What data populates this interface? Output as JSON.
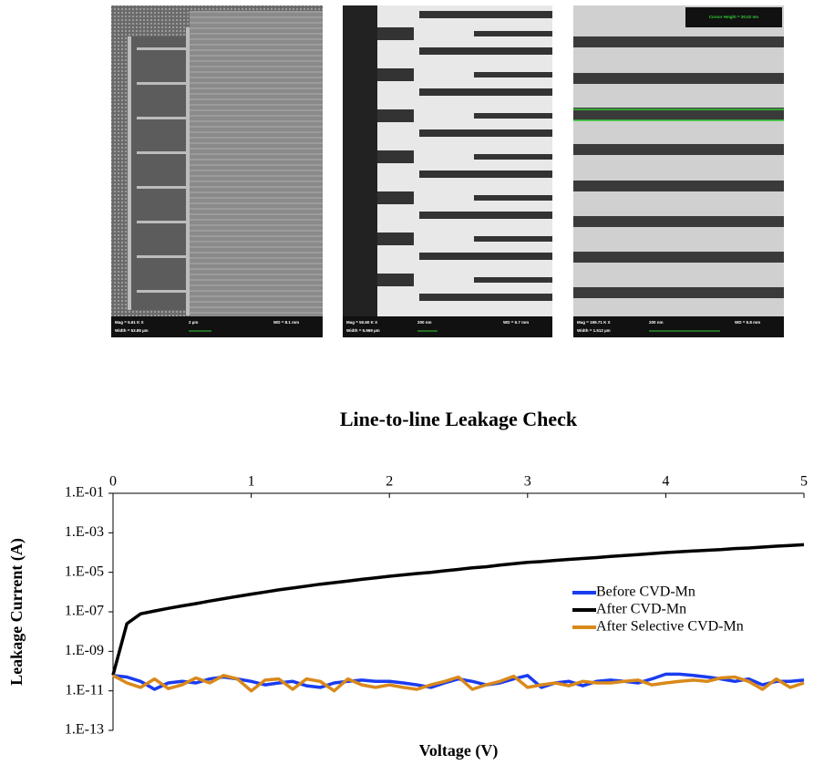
{
  "micrographs": [
    {
      "labels": [
        "Mag = 5.61 K X",
        "Width = 53.85 µm",
        "2 µm",
        "WD = 8.1 mm"
      ]
    },
    {
      "labels": [
        "Mag = 50.60 K X",
        "Width = 5.969 µm",
        "200 nm",
        "WD = 5.7 mm"
      ]
    },
    {
      "labels": [
        "Mag = 199.71 K X",
        "Width = 1.512 µm",
        "200 nm",
        "WD = 5.8 mm"
      ],
      "cursor": "Cursor Height = 30.02 nm"
    }
  ],
  "chart_data": {
    "type": "line",
    "title": "Line-to-line Leakage Check",
    "x_label": "Voltage (V)",
    "y_label": "Leakage Current (A)",
    "x": [
      0,
      0.1,
      0.2,
      0.3,
      0.4,
      0.5,
      0.6,
      0.7,
      0.8,
      0.9,
      1,
      1.1,
      1.2,
      1.3,
      1.4,
      1.5,
      1.6,
      1.7,
      1.8,
      1.9,
      2,
      2.1,
      2.2,
      2.3,
      2.4,
      2.5,
      2.6,
      2.7,
      2.8,
      2.9,
      3,
      3.1,
      3.2,
      3.3,
      3.4,
      3.5,
      3.6,
      3.7,
      3.8,
      3.9,
      4,
      4.1,
      4.2,
      4.3,
      4.4,
      4.5,
      4.6,
      4.7,
      4.8,
      4.9,
      5
    ],
    "series": [
      {
        "name": "Before CVD-Mn",
        "color": "#1a3cf0",
        "values": [
          6e-11,
          5e-11,
          3e-11,
          1.2e-11,
          2.5e-11,
          3e-11,
          2.5e-11,
          4e-11,
          5e-11,
          4e-11,
          3e-11,
          2e-11,
          2.5e-11,
          3e-11,
          1.8e-11,
          1.5e-11,
          2.5e-11,
          3e-11,
          3.5e-11,
          3e-11,
          3e-11,
          2.5e-11,
          2e-11,
          1.5e-11,
          2.5e-11,
          4e-11,
          3e-11,
          2e-11,
          2.5e-11,
          4e-11,
          6e-11,
          1.5e-11,
          2.5e-11,
          3e-11,
          1.8e-11,
          3e-11,
          3.5e-11,
          3e-11,
          2.5e-11,
          4e-11,
          7e-11,
          7e-11,
          6e-11,
          5e-11,
          4e-11,
          3e-11,
          4e-11,
          2e-11,
          3e-11,
          3e-11,
          3.5e-11
        ]
      },
      {
        "name": "After CVD-Mn",
        "color": "#000000",
        "values": [
          6.3e-11,
          2.5e-08,
          7.9e-08,
          1.1e-07,
          1.5e-07,
          2e-07,
          2.6e-07,
          3.5e-07,
          4.6e-07,
          6e-07,
          7.9e-07,
          1e-06,
          1.3e-06,
          1.6e-06,
          2e-06,
          2.5e-06,
          3e-06,
          3.6e-06,
          4.4e-06,
          5.2e-06,
          6.3e-06,
          7.4e-06,
          8.7e-06,
          1e-05,
          1.2e-05,
          1.4e-05,
          1.7e-05,
          1.9e-05,
          2.3e-05,
          2.7e-05,
          3.2e-05,
          3.5e-05,
          4e-05,
          4.5e-05,
          5e-05,
          5.6e-05,
          6.3e-05,
          7.1e-05,
          7.9e-05,
          8.9e-05,
          0.0001,
          0.00011,
          0.00012,
          0.00013,
          0.00014,
          0.00016,
          0.00017,
          0.00019,
          0.00021,
          0.00023,
          0.00025
        ]
      },
      {
        "name": "After Selective CVD-Mn",
        "color": "#d9891a",
        "values": [
          6e-11,
          2.5e-11,
          1.5e-11,
          4e-11,
          1.3e-11,
          2e-11,
          4.5e-11,
          2.5e-11,
          6e-11,
          4e-11,
          1e-11,
          3.5e-11,
          4e-11,
          1.2e-11,
          4e-11,
          3e-11,
          1e-11,
          4e-11,
          2e-11,
          1.5e-11,
          2e-11,
          1.5e-11,
          1.2e-11,
          2e-11,
          3e-11,
          5e-11,
          1.2e-11,
          2e-11,
          3e-11,
          5.5e-11,
          1.5e-11,
          2e-11,
          2.5e-11,
          1.8e-11,
          3e-11,
          2.5e-11,
          2.5e-11,
          3e-11,
          3.5e-11,
          2e-11,
          2.5e-11,
          3e-11,
          3.5e-11,
          3e-11,
          4.5e-11,
          5e-11,
          3e-11,
          1.2e-11,
          4e-11,
          1.5e-11,
          2.5e-11
        ]
      }
    ],
    "xlim": [
      0,
      5
    ],
    "xticks": [
      0,
      1,
      2,
      3,
      4,
      5
    ],
    "ylim": [
      1e-13,
      0.1
    ],
    "yscale": "log",
    "yticks": [
      {
        "value": 0.1,
        "label": "1.E-01"
      },
      {
        "value": 0.001,
        "label": "1.E-03"
      },
      {
        "value": 1e-05,
        "label": "1.E-05"
      },
      {
        "value": 1e-07,
        "label": "1.E-07"
      },
      {
        "value": 1e-09,
        "label": "1.E-09"
      },
      {
        "value": 1e-11,
        "label": "1.E-11"
      },
      {
        "value": 1e-13,
        "label": "1.E-13"
      }
    ],
    "legend": "right"
  }
}
